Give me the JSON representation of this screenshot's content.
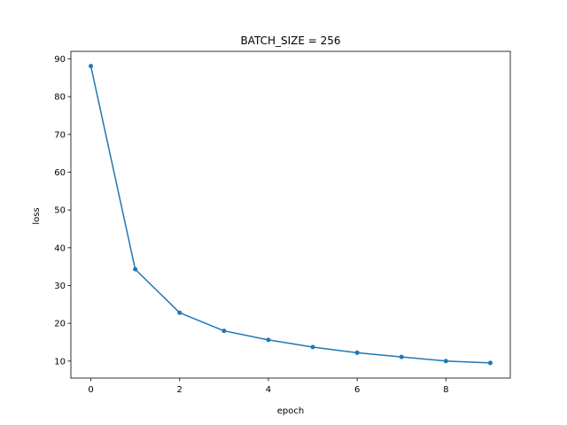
{
  "chart_data": {
    "type": "line",
    "title": "BATCH_SIZE = 256",
    "xlabel": "epoch",
    "ylabel": "loss",
    "xlim": [
      -0.45,
      9.45
    ],
    "ylim": [
      5.5,
      92.0
    ],
    "xticks": [
      0,
      2,
      4,
      6,
      8
    ],
    "yticks": [
      10,
      20,
      30,
      40,
      50,
      60,
      70,
      80,
      90
    ],
    "grid": false,
    "legend": "none",
    "series": [
      {
        "color": "#1f77b4",
        "marker": "circle",
        "x": [
          0,
          1,
          2,
          3,
          4,
          5,
          6,
          7,
          8,
          9
        ],
        "y": [
          88.1,
          34.3,
          22.8,
          18.0,
          15.6,
          13.7,
          12.2,
          11.1,
          10.0,
          9.5
        ]
      }
    ]
  }
}
